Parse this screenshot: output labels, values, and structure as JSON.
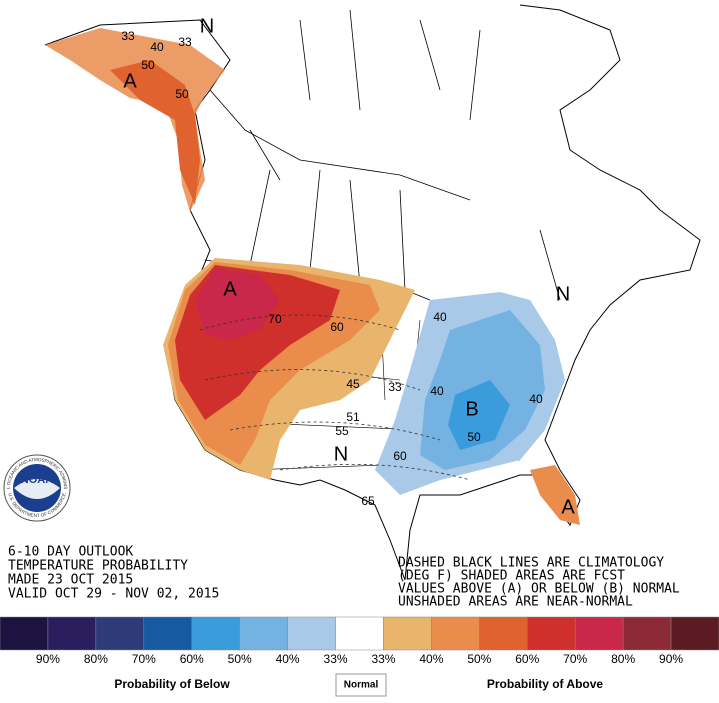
{
  "map": {
    "labels": [
      "33",
      "33",
      "40",
      "50",
      "A",
      "50",
      "N",
      "A",
      "70",
      "60",
      "45",
      "40",
      "33",
      "40",
      "B",
      "40",
      "50",
      "51",
      "55",
      "N",
      "60",
      "65",
      "A",
      "N"
    ]
  },
  "outlook": {
    "lines": [
      "6-10 DAY OUTLOOK",
      "TEMPERATURE PROBABILITY",
      "MADE  23 OCT 2015",
      "VALID  OCT 29 - NOV 02, 2015"
    ]
  },
  "notes": {
    "lines": [
      "DASHED BLACK LINES ARE CLIMATOLOGY",
      "(DEG F) SHADED AREAS ARE FCST",
      "VALUES ABOVE (A) OR BELOW (B) NORMAL",
      "UNSHADED AREAS ARE NEAR-NORMAL"
    ]
  },
  "logo": {
    "name": "NOAA",
    "ring_top": "NATIONAL OCEANIC AND ATMOSPHERIC ADMINISTRATION",
    "ring_bottom": "U.S. DEPARTMENT OF COMMERCE"
  },
  "legend": {
    "colors": [
      "#1d1340",
      "#2b1e5e",
      "#2d3c78",
      "#165ba2",
      "#3b9cdc",
      "#74b2e2",
      "#a9c9e9",
      "#ffffff",
      "#e9b46c",
      "#e98c4c",
      "#e0622e",
      "#d0302c",
      "#c9284a",
      "#8c2a38",
      "#5a1b22"
    ],
    "labels": [
      "90%",
      "80%",
      "70%",
      "60%",
      "50%",
      "40%",
      "33%",
      "33%",
      "40%",
      "50%",
      "60%",
      "70%",
      "80%",
      "90%"
    ],
    "below": "Probability of Below",
    "normal": "Normal",
    "above": "Probability of Above"
  }
}
